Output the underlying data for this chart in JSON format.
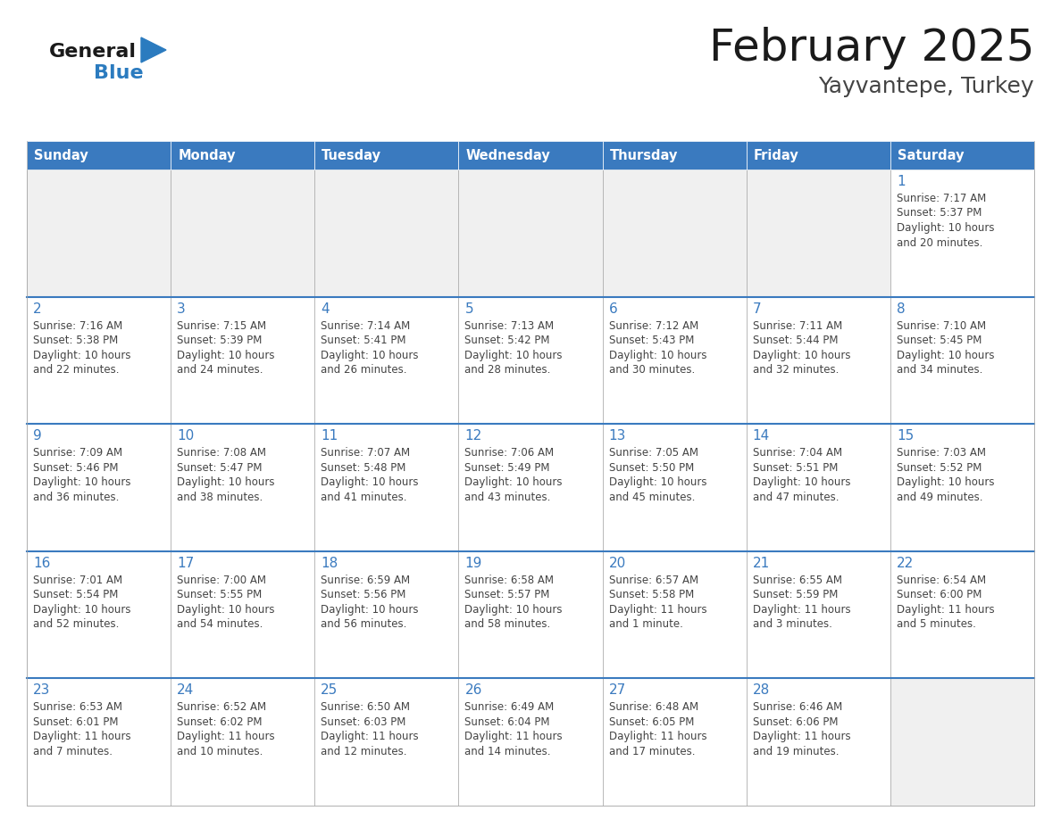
{
  "title": "February 2025",
  "subtitle": "Yayvantepe, Turkey",
  "header_color": "#3a7abf",
  "header_text_color": "#ffffff",
  "days_of_week": [
    "Sunday",
    "Monday",
    "Tuesday",
    "Wednesday",
    "Thursday",
    "Friday",
    "Saturday"
  ],
  "cell_bg_color": "#ffffff",
  "alt_cell_bg": "#f0f0f0",
  "cell_border_color": "#aaaaaa",
  "day_number_color": "#3a7abf",
  "info_text_color": "#444444",
  "title_color": "#1a1a1a",
  "subtitle_color": "#444444",
  "logo_general_color": "#1a1a1a",
  "logo_blue_color": "#2b7bbf",
  "calendar": [
    [
      null,
      null,
      null,
      null,
      null,
      null,
      1
    ],
    [
      2,
      3,
      4,
      5,
      6,
      7,
      8
    ],
    [
      9,
      10,
      11,
      12,
      13,
      14,
      15
    ],
    [
      16,
      17,
      18,
      19,
      20,
      21,
      22
    ],
    [
      23,
      24,
      25,
      26,
      27,
      28,
      null
    ]
  ],
  "day_data": {
    "1": {
      "sunrise": "7:17 AM",
      "sunset": "5:37 PM",
      "daylight_l1": "Daylight: 10 hours",
      "daylight_l2": "and 20 minutes."
    },
    "2": {
      "sunrise": "7:16 AM",
      "sunset": "5:38 PM",
      "daylight_l1": "Daylight: 10 hours",
      "daylight_l2": "and 22 minutes."
    },
    "3": {
      "sunrise": "7:15 AM",
      "sunset": "5:39 PM",
      "daylight_l1": "Daylight: 10 hours",
      "daylight_l2": "and 24 minutes."
    },
    "4": {
      "sunrise": "7:14 AM",
      "sunset": "5:41 PM",
      "daylight_l1": "Daylight: 10 hours",
      "daylight_l2": "and 26 minutes."
    },
    "5": {
      "sunrise": "7:13 AM",
      "sunset": "5:42 PM",
      "daylight_l1": "Daylight: 10 hours",
      "daylight_l2": "and 28 minutes."
    },
    "6": {
      "sunrise": "7:12 AM",
      "sunset": "5:43 PM",
      "daylight_l1": "Daylight: 10 hours",
      "daylight_l2": "and 30 minutes."
    },
    "7": {
      "sunrise": "7:11 AM",
      "sunset": "5:44 PM",
      "daylight_l1": "Daylight: 10 hours",
      "daylight_l2": "and 32 minutes."
    },
    "8": {
      "sunrise": "7:10 AM",
      "sunset": "5:45 PM",
      "daylight_l1": "Daylight: 10 hours",
      "daylight_l2": "and 34 minutes."
    },
    "9": {
      "sunrise": "7:09 AM",
      "sunset": "5:46 PM",
      "daylight_l1": "Daylight: 10 hours",
      "daylight_l2": "and 36 minutes."
    },
    "10": {
      "sunrise": "7:08 AM",
      "sunset": "5:47 PM",
      "daylight_l1": "Daylight: 10 hours",
      "daylight_l2": "and 38 minutes."
    },
    "11": {
      "sunrise": "7:07 AM",
      "sunset": "5:48 PM",
      "daylight_l1": "Daylight: 10 hours",
      "daylight_l2": "and 41 minutes."
    },
    "12": {
      "sunrise": "7:06 AM",
      "sunset": "5:49 PM",
      "daylight_l1": "Daylight: 10 hours",
      "daylight_l2": "and 43 minutes."
    },
    "13": {
      "sunrise": "7:05 AM",
      "sunset": "5:50 PM",
      "daylight_l1": "Daylight: 10 hours",
      "daylight_l2": "and 45 minutes."
    },
    "14": {
      "sunrise": "7:04 AM",
      "sunset": "5:51 PM",
      "daylight_l1": "Daylight: 10 hours",
      "daylight_l2": "and 47 minutes."
    },
    "15": {
      "sunrise": "7:03 AM",
      "sunset": "5:52 PM",
      "daylight_l1": "Daylight: 10 hours",
      "daylight_l2": "and 49 minutes."
    },
    "16": {
      "sunrise": "7:01 AM",
      "sunset": "5:54 PM",
      "daylight_l1": "Daylight: 10 hours",
      "daylight_l2": "and 52 minutes."
    },
    "17": {
      "sunrise": "7:00 AM",
      "sunset": "5:55 PM",
      "daylight_l1": "Daylight: 10 hours",
      "daylight_l2": "and 54 minutes."
    },
    "18": {
      "sunrise": "6:59 AM",
      "sunset": "5:56 PM",
      "daylight_l1": "Daylight: 10 hours",
      "daylight_l2": "and 56 minutes."
    },
    "19": {
      "sunrise": "6:58 AM",
      "sunset": "5:57 PM",
      "daylight_l1": "Daylight: 10 hours",
      "daylight_l2": "and 58 minutes."
    },
    "20": {
      "sunrise": "6:57 AM",
      "sunset": "5:58 PM",
      "daylight_l1": "Daylight: 11 hours",
      "daylight_l2": "and 1 minute."
    },
    "21": {
      "sunrise": "6:55 AM",
      "sunset": "5:59 PM",
      "daylight_l1": "Daylight: 11 hours",
      "daylight_l2": "and 3 minutes."
    },
    "22": {
      "sunrise": "6:54 AM",
      "sunset": "6:00 PM",
      "daylight_l1": "Daylight: 11 hours",
      "daylight_l2": "and 5 minutes."
    },
    "23": {
      "sunrise": "6:53 AM",
      "sunset": "6:01 PM",
      "daylight_l1": "Daylight: 11 hours",
      "daylight_l2": "and 7 minutes."
    },
    "24": {
      "sunrise": "6:52 AM",
      "sunset": "6:02 PM",
      "daylight_l1": "Daylight: 11 hours",
      "daylight_l2": "and 10 minutes."
    },
    "25": {
      "sunrise": "6:50 AM",
      "sunset": "6:03 PM",
      "daylight_l1": "Daylight: 11 hours",
      "daylight_l2": "and 12 minutes."
    },
    "26": {
      "sunrise": "6:49 AM",
      "sunset": "6:04 PM",
      "daylight_l1": "Daylight: 11 hours",
      "daylight_l2": "and 14 minutes."
    },
    "27": {
      "sunrise": "6:48 AM",
      "sunset": "6:05 PM",
      "daylight_l1": "Daylight: 11 hours",
      "daylight_l2": "and 17 minutes."
    },
    "28": {
      "sunrise": "6:46 AM",
      "sunset": "6:06 PM",
      "daylight_l1": "Daylight: 11 hours",
      "daylight_l2": "and 19 minutes."
    }
  },
  "figsize": [
    11.88,
    9.18
  ],
  "dpi": 100
}
